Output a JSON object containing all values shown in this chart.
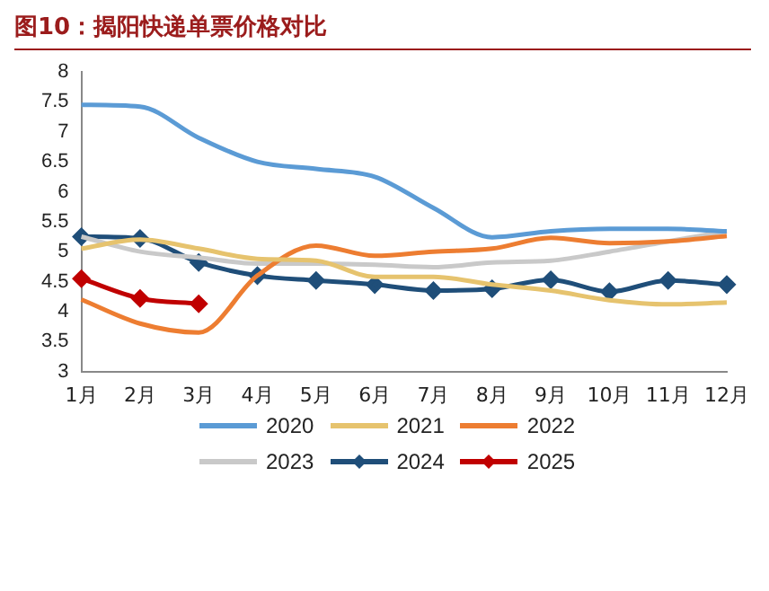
{
  "chart_data": {
    "type": "line",
    "title": "图10：揭阳快递单票价格对比",
    "categories": [
      "1月",
      "2月",
      "3月",
      "4月",
      "5月",
      "6月",
      "7月",
      "8月",
      "9月",
      "10月",
      "11月",
      "12月"
    ],
    "series": [
      {
        "name": "2020",
        "color": "#5b9bd5",
        "marker": "none",
        "values": [
          7.45,
          7.42,
          6.9,
          6.5,
          6.38,
          6.25,
          5.73,
          5.24,
          5.34,
          5.38,
          5.38,
          5.34
        ]
      },
      {
        "name": "2021",
        "color": "#e6c36e",
        "marker": "none",
        "values": [
          5.05,
          5.2,
          5.05,
          4.88,
          4.85,
          4.58,
          4.58,
          4.45,
          4.35,
          4.19,
          4.12,
          4.15
        ]
      },
      {
        "name": "2022",
        "color": "#ed7d31",
        "marker": "none",
        "values": [
          4.2,
          3.8,
          3.65,
          4.6,
          5.1,
          4.93,
          5.0,
          5.05,
          5.23,
          5.14,
          5.17,
          5.26
        ]
      },
      {
        "name": "2023",
        "color": "#c9c9c9",
        "marker": "none",
        "values": [
          5.25,
          5.0,
          4.9,
          4.8,
          4.8,
          4.78,
          4.74,
          4.82,
          4.85,
          5.0,
          5.17,
          5.34
        ]
      },
      {
        "name": "2024",
        "color": "#1f4e79",
        "marker": "diamond",
        "values": [
          5.25,
          5.22,
          4.82,
          4.6,
          4.52,
          4.45,
          4.35,
          4.38,
          4.53,
          4.33,
          4.52,
          4.45
        ]
      },
      {
        "name": "2025",
        "color": "#c00000",
        "marker": "diamond",
        "values": [
          4.55,
          4.22,
          4.13,
          null,
          null,
          null,
          null,
          null,
          null,
          null,
          null,
          null
        ]
      }
    ],
    "ylim": [
      3,
      8
    ],
    "yticks": [
      3,
      3.5,
      4,
      4.5,
      5,
      5.5,
      6,
      6.5,
      7,
      7.5,
      8
    ],
    "grid": false,
    "legend": "bottom",
    "line_style": "solid"
  }
}
